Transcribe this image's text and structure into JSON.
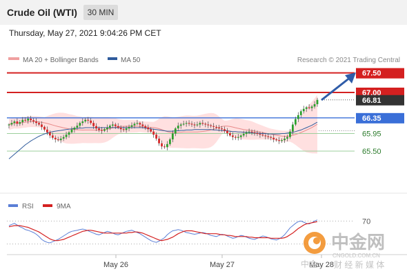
{
  "header": {
    "title": "Crude Oil (WTI)",
    "timeframe": "30 MIN",
    "datetime": "Thursday, May 27, 2021 9:04:26 PM CET"
  },
  "legend_top": {
    "ma20_bollinger": "MA 20 + Bollinger Bands",
    "ma50": "MA 50",
    "credit": "Research © 2021 Trading Central"
  },
  "legend_bottom": {
    "rsi": "RSI",
    "ma9": "9MA"
  },
  "watermark": {
    "name": "中金网",
    "domain": "CNGOLD.COM.CN",
    "tagline": "财 经 新 媒 体",
    "fragment": "中金"
  },
  "colors": {
    "resistance": "#d42020",
    "pivot": "#3a6fd8",
    "support": "#9ccf9c",
    "support_text": "#2a7a2a",
    "arrow": "#2f5ca8",
    "ma50": "#2f5b9c",
    "bollinger_fill": "#ffd6d6",
    "ma20": "#e88a8a",
    "rsi": "#5b7fd6",
    "rsi_ma": "#d42020",
    "candle_up": "#2ca02c",
    "candle_down": "#d62728"
  },
  "chart_data": [
    {
      "type": "candlestick",
      "ylim": [
        65.2,
        67.6
      ],
      "x_ticks": [
        "May 26",
        "May 27",
        "May 28"
      ],
      "levels": [
        {
          "value": 67.5,
          "label": "67.50",
          "style": "resistance"
        },
        {
          "value": 67.0,
          "label": "67.00",
          "style": "resistance"
        },
        {
          "value": 66.81,
          "label": "66.81",
          "style": "last_price"
        },
        {
          "value": 66.35,
          "label": "66.35",
          "style": "pivot"
        },
        {
          "value": 65.95,
          "label": "65.95",
          "style": "support"
        },
        {
          "value": 65.5,
          "label": "65.50",
          "style": "support"
        }
      ],
      "close": [
        66.18,
        66.22,
        66.26,
        66.2,
        66.24,
        66.3,
        66.28,
        66.33,
        66.29,
        66.26,
        66.22,
        66.18,
        66.12,
        66.05,
        65.98,
        65.9,
        65.84,
        65.8,
        65.78,
        65.82,
        65.86,
        65.92,
        65.98,
        66.05,
        66.1,
        66.15,
        66.22,
        66.26,
        66.3,
        66.28,
        66.22,
        66.14,
        66.08,
        66.04,
        66.02,
        66.06,
        66.1,
        66.15,
        66.18,
        66.14,
        66.1,
        66.06,
        66.04,
        66.08,
        66.12,
        66.16,
        66.2,
        66.22,
        66.18,
        66.14,
        66.1,
        66.06,
        66.0,
        65.92,
        65.82,
        65.7,
        65.62,
        65.6,
        65.68,
        65.8,
        65.95,
        66.08,
        66.15,
        66.18,
        66.2,
        66.22,
        66.2,
        66.18,
        66.16,
        66.18,
        66.22,
        66.2,
        66.18,
        66.16,
        66.14,
        66.12,
        66.1,
        66.08,
        66.06,
        66.02,
        65.96,
        65.9,
        65.86,
        65.84,
        65.86,
        65.9,
        65.94,
        65.98,
        66.0,
        65.98,
        65.96,
        65.94,
        65.92,
        65.9,
        65.88,
        65.86,
        65.84,
        65.8,
        65.78,
        65.76,
        65.78,
        65.82,
        65.86,
        66.0,
        66.18,
        66.32,
        66.42,
        66.52,
        66.58,
        66.62,
        66.6,
        66.64,
        66.7,
        66.81
      ],
      "ma50": [
        65.3,
        65.36,
        65.42,
        65.48,
        65.54,
        65.6,
        65.66,
        65.71,
        65.76,
        65.8,
        65.84,
        65.88,
        65.91,
        65.94,
        65.96,
        65.98,
        66.0,
        66.01,
        66.02,
        66.03,
        66.04,
        66.05,
        66.06,
        66.07,
        66.08,
        66.08,
        66.09,
        66.09,
        66.1,
        66.1,
        66.1,
        66.1,
        66.1,
        66.1,
        66.1,
        66.1,
        66.1,
        66.1,
        66.1,
        66.1,
        66.1,
        66.1,
        66.1,
        66.1,
        66.1,
        66.1,
        66.1,
        66.1,
        66.1,
        66.1,
        66.09,
        66.08,
        66.07,
        66.06,
        66.05,
        66.04,
        66.03,
        66.02,
        66.01,
        66.01,
        66.01,
        66.02,
        66.02,
        66.03,
        66.03,
        66.04,
        66.04,
        66.04,
        66.05,
        66.05,
        66.05,
        66.05,
        66.05,
        66.05,
        66.05,
        66.04,
        66.04,
        66.03,
        66.03,
        66.02,
        66.02,
        66.01,
        66.0,
        66.0,
        65.99,
        65.99,
        65.98,
        65.98,
        65.97,
        65.97,
        65.96,
        65.96,
        65.95,
        65.95,
        65.95,
        65.94,
        65.94,
        65.94,
        65.94,
        65.94,
        65.95,
        65.95,
        65.96,
        65.97,
        65.98,
        66.0,
        66.02,
        66.04,
        66.07,
        66.1,
        66.13,
        66.16,
        66.2,
        66.24
      ]
    },
    {
      "type": "line",
      "series": [
        {
          "name": "RSI",
          "values": [
            62,
            64,
            66,
            63,
            60,
            58,
            55,
            54,
            52,
            50,
            47,
            43,
            38,
            35,
            33,
            32,
            34,
            36,
            38,
            41,
            44,
            47,
            50,
            52,
            53,
            54,
            55,
            56,
            55,
            53,
            51,
            49,
            47,
            46,
            48,
            50,
            52,
            51,
            49,
            47,
            46,
            48,
            50,
            52,
            53,
            54,
            52,
            50,
            48,
            45,
            42,
            39,
            36,
            34,
            33,
            35,
            38,
            41,
            46,
            50,
            53,
            54,
            55,
            54,
            52,
            50,
            49,
            48,
            47,
            48,
            49,
            50,
            49,
            47,
            45,
            44,
            43,
            45,
            47,
            46,
            44,
            42,
            40,
            41,
            43,
            45,
            44,
            42,
            40,
            39,
            38,
            40,
            42,
            44,
            43,
            41,
            39,
            38,
            37,
            39,
            42,
            46,
            52,
            58,
            62,
            66,
            69,
            70,
            68,
            66,
            65,
            67,
            70,
            72
          ]
        },
        {
          "name": "9MA",
          "values": [
            60,
            61,
            62,
            62,
            62,
            61,
            60,
            59,
            57,
            55,
            53,
            51,
            48,
            45,
            42,
            39,
            37,
            36,
            36,
            37,
            38,
            40,
            42,
            44,
            46,
            48,
            50,
            52,
            53,
            54,
            54,
            53,
            52,
            51,
            50,
            49,
            49,
            49,
            49,
            49,
            49,
            49,
            49,
            49,
            50,
            50,
            51,
            51,
            50,
            49,
            47,
            45,
            43,
            41,
            39,
            37,
            36,
            37,
            38,
            40,
            42,
            45,
            48,
            50,
            52,
            53,
            53,
            53,
            52,
            51,
            50,
            49,
            48,
            48,
            48,
            48,
            48,
            47,
            46,
            46,
            45,
            45,
            44,
            43,
            43,
            43,
            43,
            43,
            42,
            42,
            41,
            41,
            41,
            41,
            41,
            41,
            40,
            40,
            40,
            40,
            40,
            41,
            43,
            46,
            49,
            53,
            57,
            60,
            63,
            65,
            66,
            67,
            68,
            69
          ]
        }
      ],
      "reference_level": 70
    }
  ]
}
